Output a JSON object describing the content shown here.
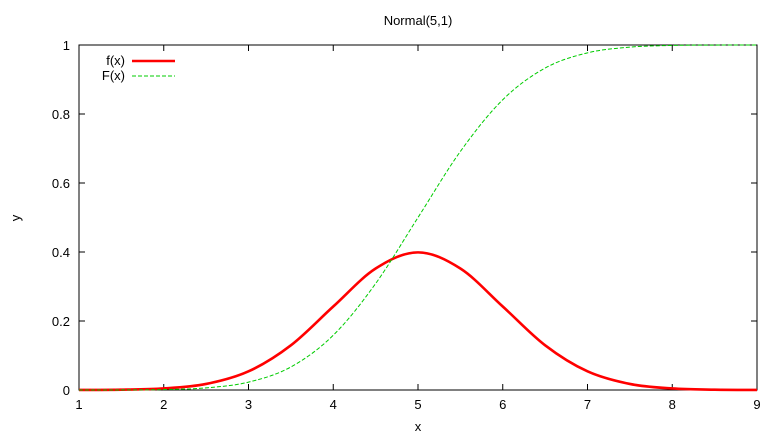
{
  "chart_data": {
    "type": "line",
    "title": "Normal(5,1)",
    "xlabel": "x",
    "ylabel": "y",
    "xlim": [
      1,
      9
    ],
    "ylim": [
      0,
      1
    ],
    "xticks": [
      "1",
      "2",
      "3",
      "4",
      "5",
      "6",
      "7",
      "8",
      "9"
    ],
    "yticks": [
      "0",
      "0.2",
      "0.4",
      "0.6",
      "0.8",
      "1"
    ],
    "grid": false,
    "legend_position": "top-left",
    "series": [
      {
        "name": "f(x)",
        "color": "#ff0000",
        "style": "solid",
        "x": [
          1,
          1.5,
          2,
          2.5,
          3,
          3.5,
          4,
          4.5,
          5,
          5.5,
          6,
          6.5,
          7,
          7.5,
          8,
          8.5,
          9
        ],
        "y": [
          0.0001,
          0.0009,
          0.0044,
          0.0175,
          0.054,
          0.1295,
          0.242,
          0.3521,
          0.3989,
          0.3521,
          0.242,
          0.1295,
          0.054,
          0.0175,
          0.0044,
          0.0009,
          0.0001
        ]
      },
      {
        "name": "F(x)",
        "color": "#00cc00",
        "style": "dashed",
        "x": [
          1,
          1.5,
          2,
          2.5,
          3,
          3.5,
          4,
          4.5,
          5,
          5.5,
          6,
          6.5,
          7,
          7.5,
          8,
          8.5,
          9
        ],
        "y": [
          3e-05,
          0.0002,
          0.0013,
          0.0062,
          0.0228,
          0.0668,
          0.1587,
          0.3085,
          0.5,
          0.6915,
          0.8413,
          0.9332,
          0.9772,
          0.9938,
          0.9987,
          0.9998,
          1.0
        ]
      }
    ]
  }
}
